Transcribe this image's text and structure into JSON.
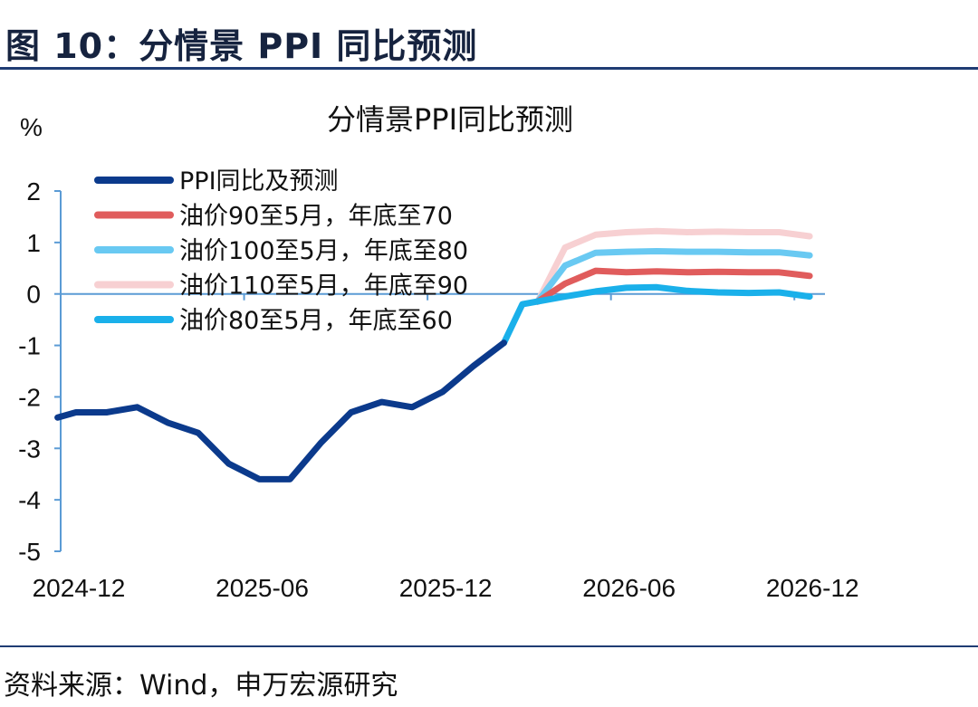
{
  "figure_title": "图 10：分情景 PPI 同比预测",
  "source": "资料来源：Wind，申万宏源研究",
  "colors": {
    "axis": "#5b9bd5",
    "title_rule": "#1f3c73"
  },
  "chart_data": {
    "type": "line",
    "title": "分情景PPI同比预测",
    "ylabel": "%",
    "xlabel": "",
    "ylim": [
      -5,
      2
    ],
    "yticks": [
      2,
      1,
      0,
      -1,
      -2,
      -3,
      -4,
      -5
    ],
    "x_tick_labels": [
      "2024-12",
      "2025-06",
      "2025-12",
      "2026-06",
      "2026-12"
    ],
    "x_tick_indices": [
      0,
      6,
      12,
      18,
      24
    ],
    "x_range": [
      0,
      25
    ],
    "legend_position": "top-left",
    "series": [
      {
        "name": "PPI同比及预测",
        "color": "#0b3a8c",
        "x": [
          -0.1,
          0.5,
          1.5,
          2.5,
          3.5,
          4.5,
          5.5,
          6.5,
          7.5,
          8.5,
          9.5,
          10.5,
          11.5,
          12.5,
          13.5,
          14.5
        ],
        "values": [
          -2.4,
          -2.3,
          -2.3,
          -2.2,
          -2.5,
          -2.7,
          -3.3,
          -3.6,
          -3.6,
          -2.9,
          -2.3,
          -2.1,
          -2.2,
          -1.9,
          -1.4,
          -0.95
        ]
      },
      {
        "name": "油价90至5月，年底至70",
        "color": "#e05c5c",
        "x": [
          15.6,
          16.5,
          17.5,
          18.5,
          19.5,
          20.5,
          21.5,
          22.5,
          23.5,
          24.5
        ],
        "values": [
          -0.15,
          0.2,
          0.45,
          0.42,
          0.44,
          0.42,
          0.43,
          0.42,
          0.42,
          0.35
        ]
      },
      {
        "name": "油价100至5月，年底至80",
        "color": "#69c9f2",
        "x": [
          15.6,
          16.5,
          17.5,
          18.5,
          19.5,
          20.5,
          21.5,
          22.5,
          23.5,
          24.5
        ],
        "values": [
          -0.15,
          0.55,
          0.8,
          0.82,
          0.83,
          0.82,
          0.82,
          0.81,
          0.81,
          0.75
        ]
      },
      {
        "name": "油价110至5月，年底至90",
        "color": "#f7d0d2",
        "x": [
          15.6,
          16.5,
          17.5,
          18.5,
          19.5,
          20.5,
          21.5,
          22.5,
          23.5,
          24.5
        ],
        "values": [
          -0.15,
          0.9,
          1.15,
          1.2,
          1.22,
          1.2,
          1.21,
          1.2,
          1.2,
          1.12
        ]
      },
      {
        "name": "油价80至5月，年底至60",
        "color": "#1ab0ea",
        "x": [
          14.5,
          15.1,
          16.5,
          17.5,
          18.5,
          19.5,
          20.5,
          21.5,
          22.5,
          23.5,
          24.5
        ],
        "values": [
          -0.95,
          -0.2,
          -0.05,
          0.05,
          0.12,
          0.13,
          0.06,
          0.03,
          0.02,
          0.03,
          -0.05
        ]
      }
    ]
  }
}
